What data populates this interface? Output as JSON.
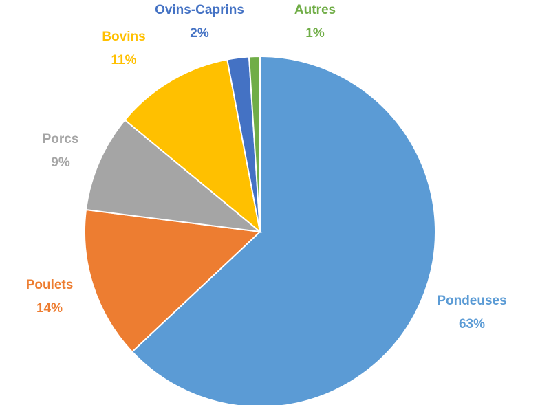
{
  "chart_data": {
    "type": "pie",
    "title": "",
    "legend": "none",
    "slices": [
      {
        "name": "Pondeuses",
        "value": 63,
        "label": "63%",
        "color": "#5b9bd5"
      },
      {
        "name": "Poulets",
        "value": 14,
        "label": "14%",
        "color": "#ed7d31"
      },
      {
        "name": "Porcs",
        "value": 9,
        "label": "9%",
        "color": "#a5a5a5"
      },
      {
        "name": "Bovins",
        "value": 11,
        "label": "11%",
        "color": "#ffc000"
      },
      {
        "name": "Ovins-Caprins",
        "value": 2,
        "label": "2%",
        "color": "#4472c4"
      },
      {
        "name": "Autres",
        "value": 1,
        "label": "1%",
        "color": "#70ad47"
      }
    ]
  }
}
